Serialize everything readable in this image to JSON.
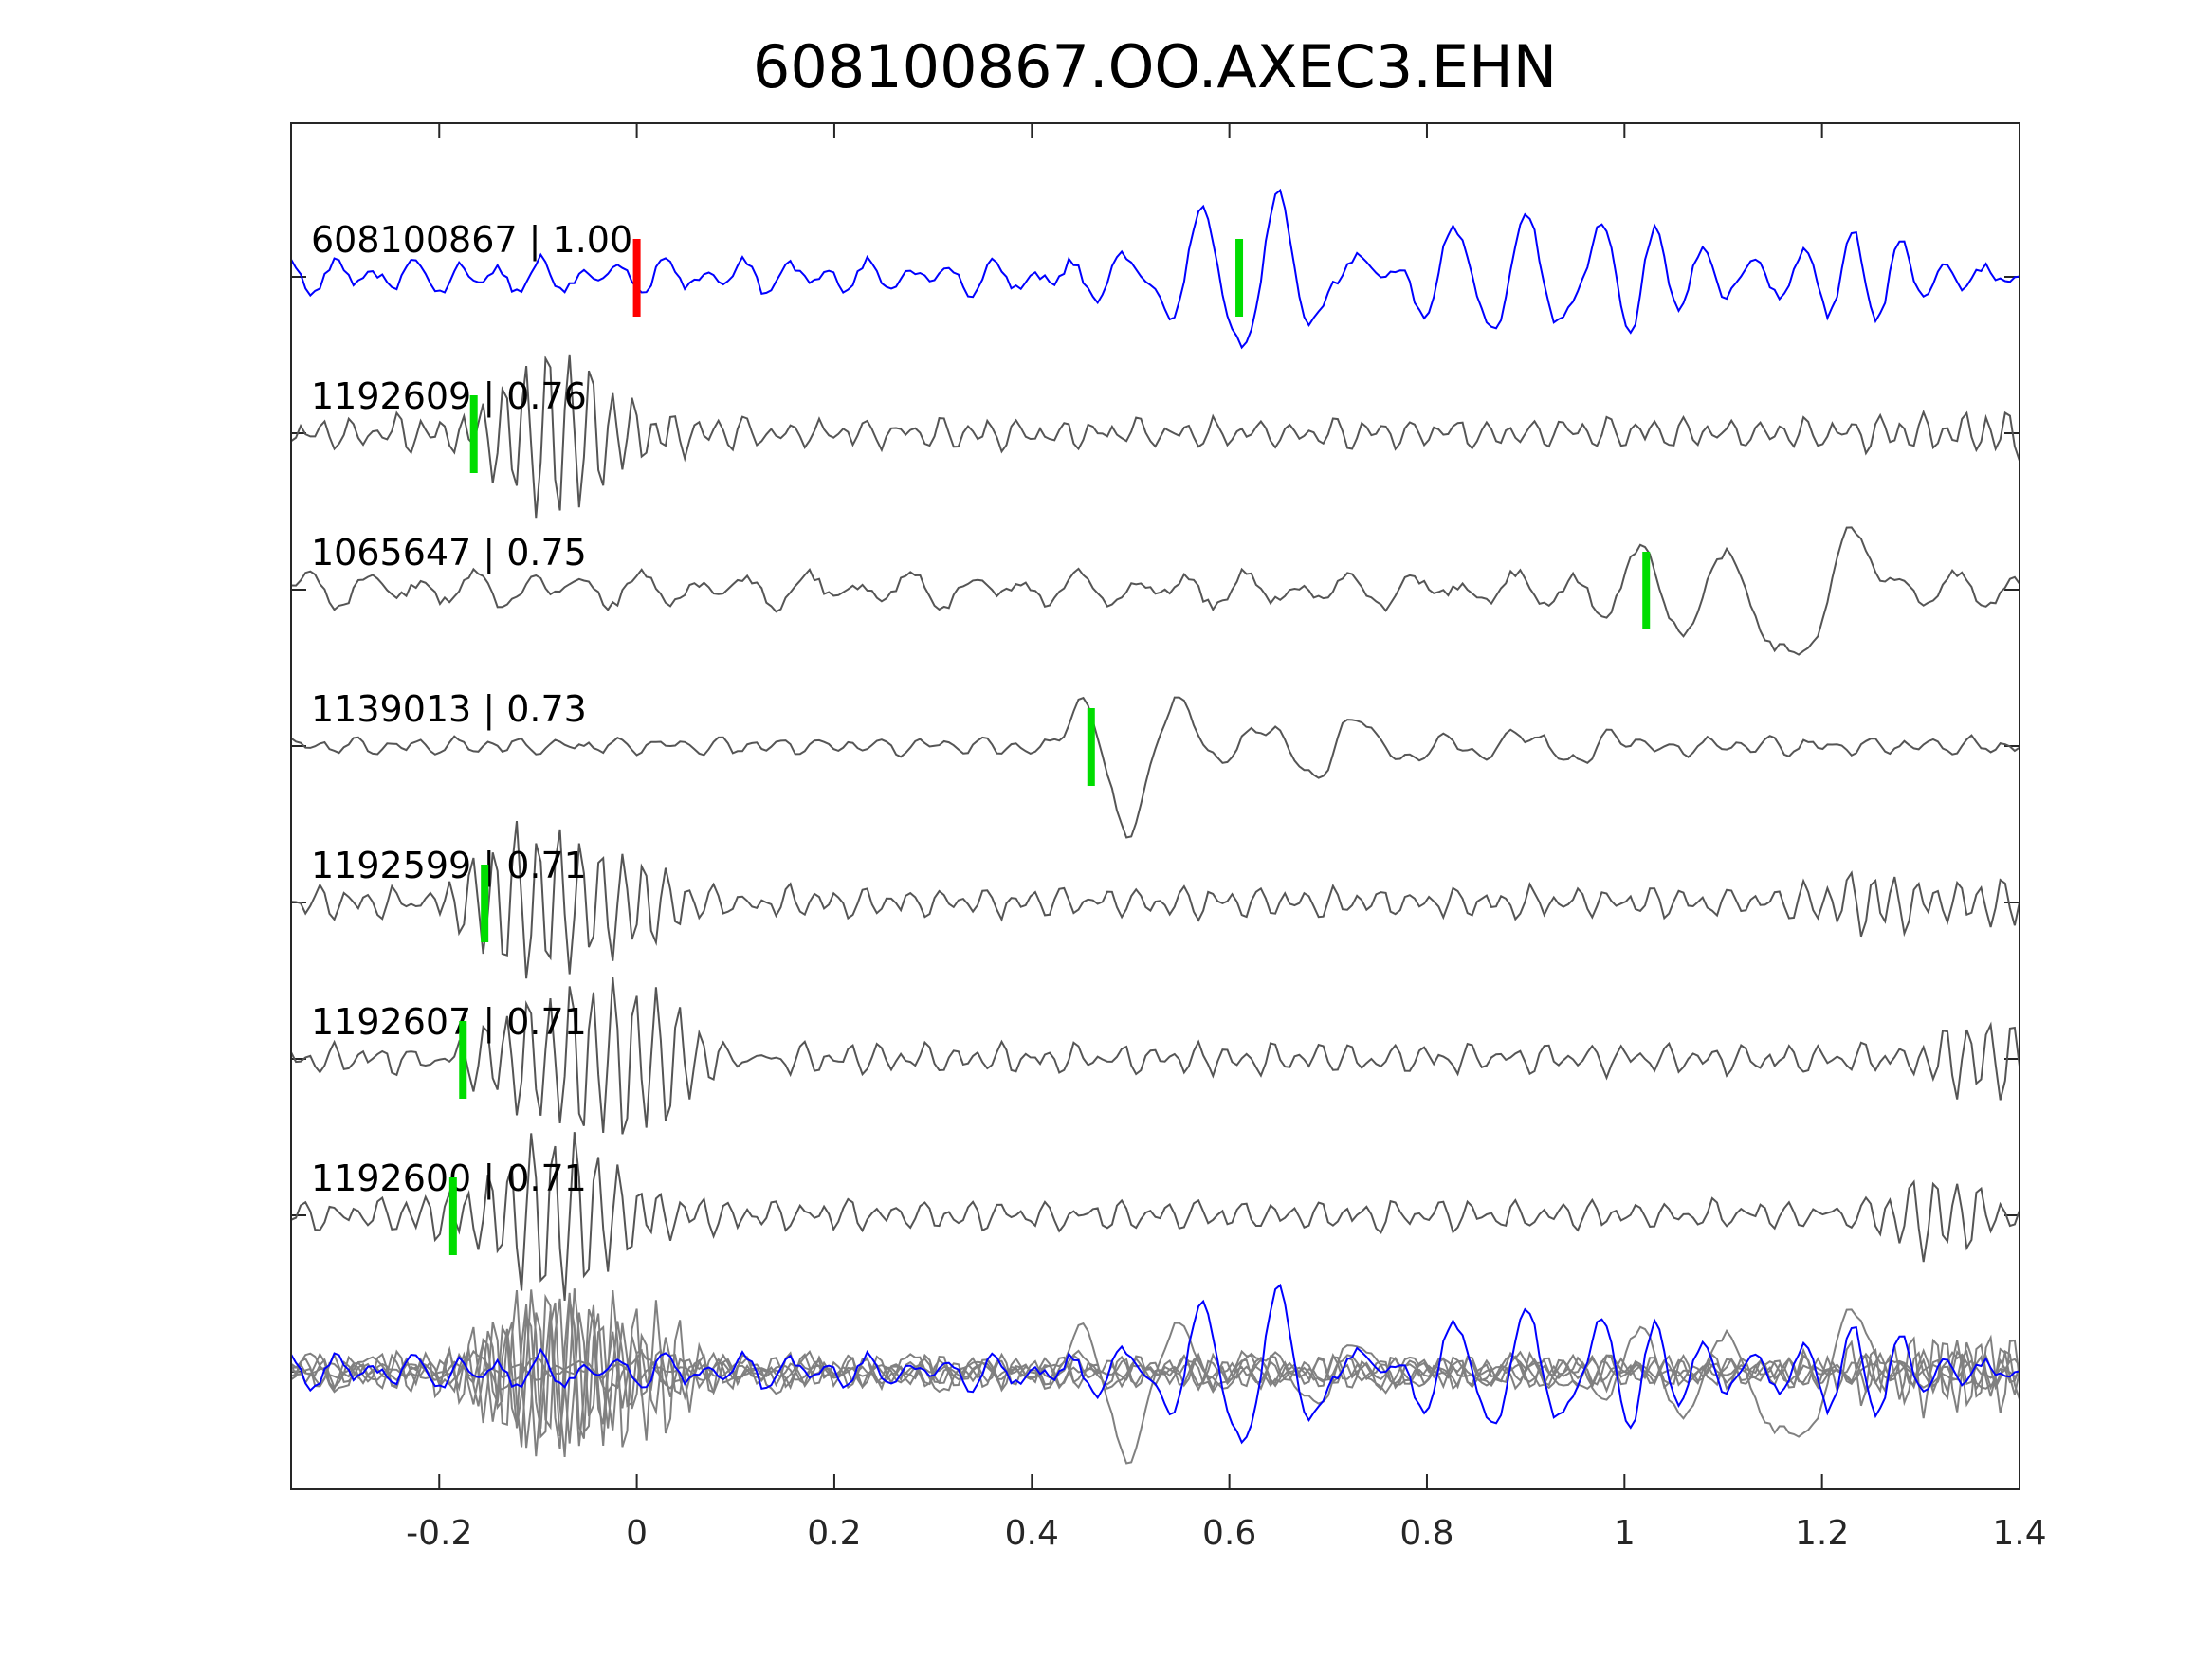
{
  "chart_data": {
    "type": "line",
    "title": "608100867.OO.AXEC3.EHN",
    "xlabel": "",
    "ylabel": "",
    "xlim": [
      -0.35,
      1.4
    ],
    "xticks": [
      -0.2,
      0,
      0.2,
      0.4,
      0.6,
      0.8,
      1,
      1.2,
      1.4
    ],
    "xtick_labels": [
      "-0.2",
      "0",
      "0.2",
      "0.4",
      "0.6",
      "0.8",
      "1",
      "1.2",
      "1.4"
    ],
    "grid": false,
    "colors": {
      "template": "#0000ff",
      "neighbor": "#555555",
      "stack": "#808080",
      "reference_pick": "#ff0000",
      "pick": "#00dd00"
    },
    "reference_pick_time": 0,
    "traces": [
      {
        "label": "608100867 | 1.00",
        "id": "608100867",
        "cc": 1.0,
        "color": "template",
        "pick": 0.61,
        "noise": 0.12,
        "noise_freq": 24,
        "bursts": [
          {
            "t": 0.63,
            "dur": 0.1,
            "amp": 0.5,
            "freq": 13
          },
          {
            "t": 0.9,
            "dur": 0.12,
            "amp": 0.35,
            "freq": 14
          },
          {
            "t": 1.15,
            "dur": 0.2,
            "amp": 0.22,
            "freq": 20
          }
        ],
        "seed": 3
      },
      {
        "label": "1192609 | 0.76",
        "id": "1192609",
        "cc": 0.76,
        "color": "neighbor",
        "pick": -0.165,
        "noise": 0.1,
        "noise_freq": 40,
        "bursts": [
          {
            "t": -0.08,
            "dur": 0.09,
            "amp": 0.5,
            "freq": 46
          },
          {
            "t": 1.35,
            "dur": 0.08,
            "amp": 0.15,
            "freq": 45
          }
        ],
        "seed": 7
      },
      {
        "label": "1065647 | 0.75",
        "id": "1065647",
        "cc": 0.75,
        "color": "neighbor",
        "pick": 1.022,
        "noise": 0.12,
        "noise_freq": 18,
        "bursts": [
          {
            "t": 1.05,
            "dur": 0.07,
            "amp": 0.4,
            "freq": 12
          },
          {
            "t": 1.19,
            "dur": 0.06,
            "amp": 0.55,
            "freq": 6
          }
        ],
        "seed": 11
      },
      {
        "label": "1139013 | 0.73",
        "id": "1139013",
        "cc": 0.73,
        "color": "neighbor",
        "pick": 0.46,
        "noise": 0.06,
        "noise_freq": 30,
        "bursts": [
          {
            "t": 0.5,
            "dur": 0.06,
            "amp": 0.55,
            "freq": 9
          },
          {
            "t": 0.7,
            "dur": 0.1,
            "amp": 0.2,
            "freq": 10
          },
          {
            "t": 0.92,
            "dur": 0.1,
            "amp": 0.1,
            "freq": 10
          }
        ],
        "seed": 19
      },
      {
        "label": "1192599 | 0.71",
        "id": "1192599",
        "cc": 0.71,
        "color": "neighbor",
        "pick": -0.154,
        "noise": 0.1,
        "noise_freq": 40,
        "bursts": [
          {
            "t": -0.08,
            "dur": 0.1,
            "amp": 0.5,
            "freq": 46
          },
          {
            "t": 1.3,
            "dur": 0.1,
            "amp": 0.18,
            "freq": 45
          }
        ],
        "seed": 23
      },
      {
        "label": "1192607 | 0.71",
        "id": "1192607",
        "cc": 0.71,
        "color": "neighbor",
        "pick": -0.176,
        "noise": 0.1,
        "noise_freq": 40,
        "bursts": [
          {
            "t": -0.04,
            "dur": 0.1,
            "amp": 0.55,
            "freq": 46
          },
          {
            "t": 1.35,
            "dur": 0.08,
            "amp": 0.2,
            "freq": 45
          }
        ],
        "seed": 29
      },
      {
        "label": "1192600 | 0.71",
        "id": "1192600",
        "cc": 0.71,
        "color": "neighbor",
        "pick": -0.186,
        "noise": 0.1,
        "noise_freq": 40,
        "bursts": [
          {
            "t": -0.08,
            "dur": 0.1,
            "amp": 0.5,
            "freq": 46
          },
          {
            "t": 1.33,
            "dur": 0.08,
            "amp": 0.2,
            "freq": 45
          }
        ],
        "seed": 31
      }
    ]
  }
}
